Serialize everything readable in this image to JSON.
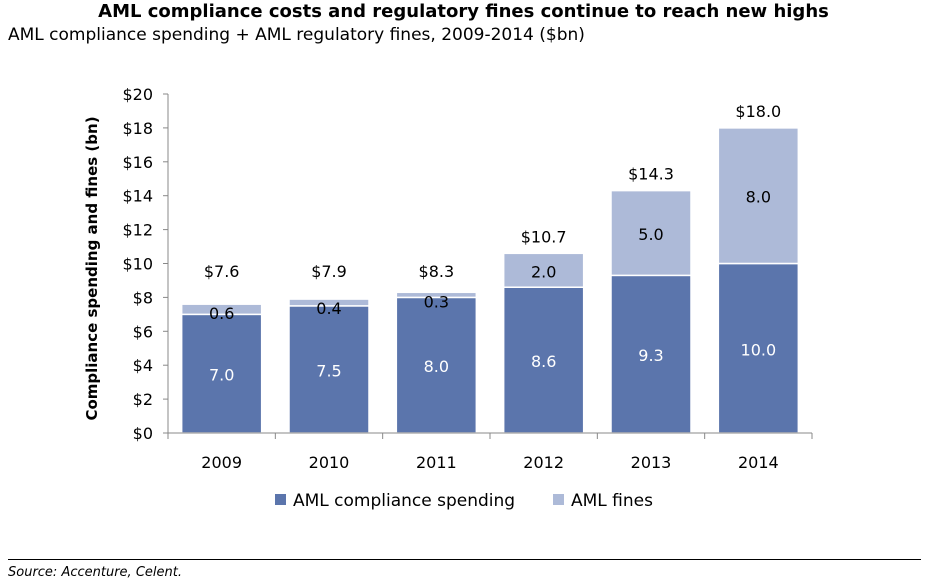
{
  "title": "AML compliance costs and regulatory fines continue to reach new highs",
  "subtitle": "AML compliance spending + AML regulatory fines, 2009-2014 ($bn)",
  "source": "Source: Accenture, Celent.",
  "chart_data": {
    "type": "bar",
    "stacked": true,
    "categories": [
      "2009",
      "2010",
      "2011",
      "2012",
      "2013",
      "2014"
    ],
    "series": [
      {
        "name": "AML compliance spending",
        "values": [
          7.0,
          7.5,
          8.0,
          8.6,
          9.3,
          10.0
        ],
        "labels": [
          "7.0",
          "7.5",
          "8.0",
          "8.6",
          "9.3",
          "10.0"
        ],
        "color": "#5b75ac"
      },
      {
        "name": "AML fines",
        "values": [
          0.6,
          0.4,
          0.3,
          2.0,
          5.0,
          8.0
        ],
        "labels": [
          "0.6",
          "0.4",
          "0.3",
          "2.0",
          "5.0",
          "8.0"
        ],
        "color": "#adbad8"
      }
    ],
    "totals": [
      "$7.6",
      "$7.9",
      "$8.3",
      "$10.7",
      "$14.3",
      "$18.0"
    ],
    "ylabel": "Compliance spending and fines (bn)",
    "ylim": [
      0,
      20
    ],
    "yticks": [
      "$0",
      "$2",
      "$4",
      "$6",
      "$8",
      "$10",
      "$12",
      "$14",
      "$16",
      "$18",
      "$20"
    ],
    "grid": false,
    "legend_position": "bottom"
  }
}
